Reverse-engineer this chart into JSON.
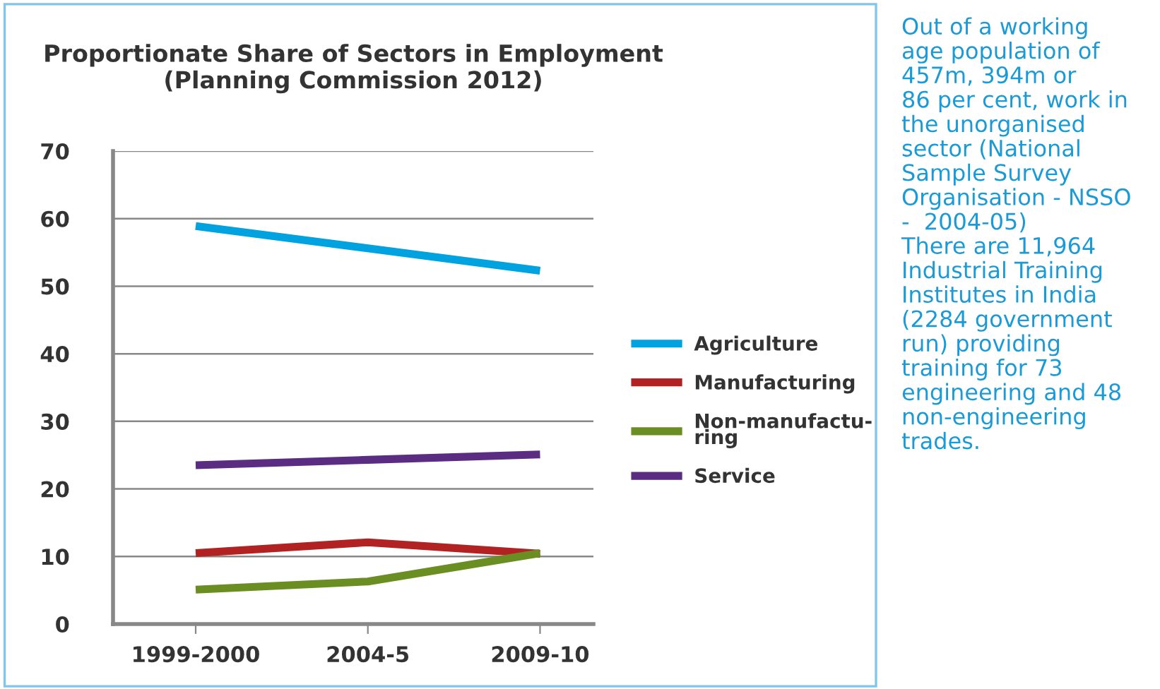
{
  "chart_data": {
    "type": "line",
    "title": "Proportionate Share of Sectors in Employment\n(Planning Commission 2012)",
    "categories": [
      "1999-2000",
      "2004-5",
      "2009-10"
    ],
    "series": [
      {
        "name": "Agriculture",
        "color": "#00a3e0",
        "values": [
          58.9,
          55.6,
          52.3
        ]
      },
      {
        "name": "Manufacturing",
        "color": "#b22222",
        "values": [
          10.5,
          12.1,
          10.4
        ]
      },
      {
        "name": "Non-manufactu-\nring",
        "color": "#6b8e23",
        "values": [
          5.1,
          6.3,
          10.5
        ]
      },
      {
        "name": "Service",
        "color": "#5a2d82",
        "values": [
          23.5,
          24.3,
          25.1
        ]
      }
    ],
    "ylim": [
      0,
      70
    ],
    "yticks": [
      0,
      10,
      20,
      30,
      40,
      50,
      60,
      70
    ],
    "grid": "y",
    "legend": "right",
    "marker": "none",
    "line_style": "solid",
    "annotations": [
      "Out of a working\nage population of\n457m, 394m or\n86 per cent, work in\nthe unorganised\nsector (National\nSample Survey\nOrganisation - NSSO\n-  2004-05)",
      "There are 11,964\nIndustrial Training\nInstitutes in India\n(2284 government\nrun) providing\ntraining for 73\nengineering and 48\nnon-engineering\ntrades."
    ]
  }
}
